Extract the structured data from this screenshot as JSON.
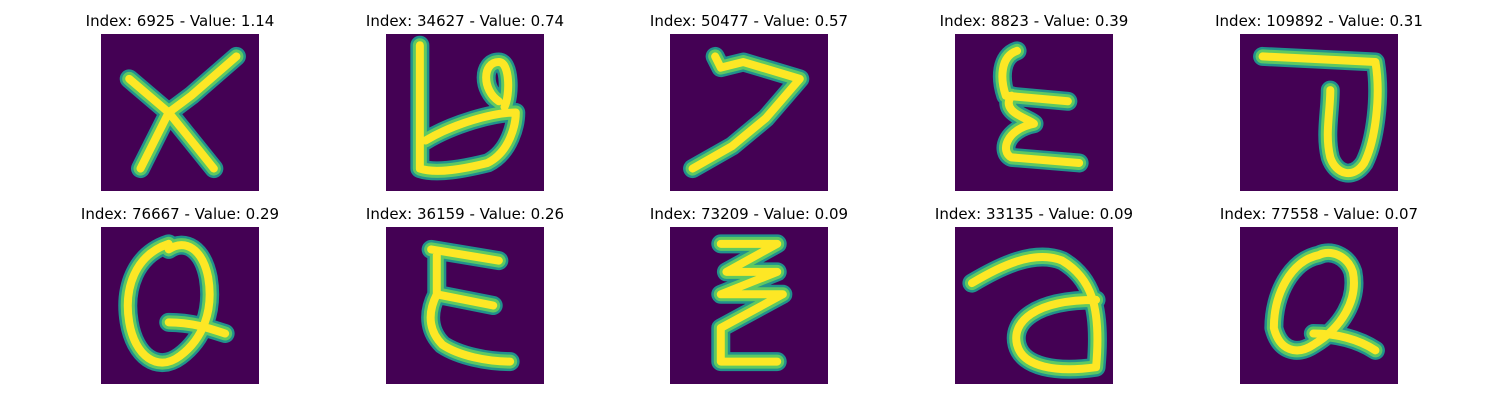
{
  "panels": [
    {
      "title": "Index: 6925 - Value: 1.14",
      "index": 6925,
      "value": 1.14,
      "depicts": "X"
    },
    {
      "title": "Index: 34627 - Value: 0.74",
      "index": 34627,
      "value": 0.74,
      "depicts": "b"
    },
    {
      "title": "Index: 50477 - Value: 0.57",
      "index": 50477,
      "value": 0.57,
      "depicts": "7"
    },
    {
      "title": "Index: 8823 - Value: 0.39",
      "index": 8823,
      "value": 0.39,
      "depicts": "E"
    },
    {
      "title": "Index: 109892 - Value: 0.31",
      "index": 109892,
      "value": 0.31,
      "depicts": "J"
    },
    {
      "title": "Index: 76667 - Value: 0.29",
      "index": 76667,
      "value": 0.29,
      "depicts": "Q"
    },
    {
      "title": "Index: 36159 - Value: 0.26",
      "index": 36159,
      "value": 0.26,
      "depicts": "E"
    },
    {
      "title": "Index: 73209 - Value: 0.09",
      "index": 73209,
      "value": 0.09,
      "depicts": "Z"
    },
    {
      "title": "Index: 33135 - Value: 0.09",
      "index": 33135,
      "value": 0.09,
      "depicts": "a"
    },
    {
      "title": "Index: 77558 - Value: 0.07",
      "index": 77558,
      "value": 0.07,
      "depicts": "Q"
    }
  ],
  "colors": {
    "background": "#440154",
    "stroke_core": "#fde725",
    "stroke_mid": "#5ec962",
    "stroke_edge": "#21918c",
    "colormap": "viridis"
  }
}
